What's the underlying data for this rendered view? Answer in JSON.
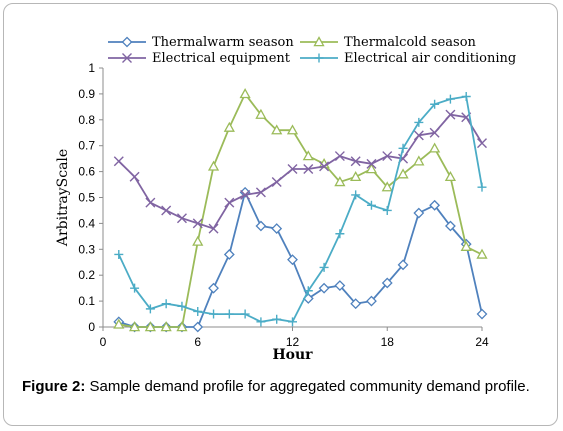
{
  "figure": {
    "caption_label": "Figure 2:",
    "caption_text": " Sample demand profile for aggregated community demand profile."
  },
  "chart_data": {
    "type": "line",
    "title": "",
    "xlabel": "Hour",
    "ylabel": "ArbitrayScale",
    "xlim": [
      0,
      24
    ],
    "ylim": [
      0,
      1
    ],
    "x_ticks": [
      0,
      6,
      12,
      18,
      24
    ],
    "y_ticks": [
      0,
      0.1,
      0.2,
      0.3,
      0.4,
      0.5,
      0.6,
      0.7,
      0.8,
      0.9,
      1
    ],
    "x": [
      1,
      2,
      3,
      4,
      5,
      6,
      7,
      8,
      9,
      10,
      11,
      12,
      13,
      14,
      15,
      16,
      17,
      18,
      19,
      20,
      21,
      22,
      23,
      24
    ],
    "series": [
      {
        "name": "Thermalwarm season",
        "color": "#4f81bd",
        "marker": "diamond",
        "values": [
          0.02,
          0.0,
          0.0,
          0.0,
          0.0,
          0.0,
          0.15,
          0.28,
          0.52,
          0.39,
          0.38,
          0.26,
          0.11,
          0.15,
          0.16,
          0.09,
          0.1,
          0.17,
          0.24,
          0.44,
          0.47,
          0.39,
          0.32,
          0.05
        ]
      },
      {
        "name": "Thermalcold season",
        "color": "#9bbb59",
        "marker": "triangle",
        "values": [
          0.01,
          0.0,
          0.0,
          0.0,
          0.0,
          0.33,
          0.62,
          0.77,
          0.9,
          0.82,
          0.76,
          0.76,
          0.66,
          0.63,
          0.56,
          0.58,
          0.61,
          0.54,
          0.59,
          0.64,
          0.69,
          0.58,
          0.31,
          0.28
        ]
      },
      {
        "name": "Electrical equipment",
        "color": "#8064a2",
        "marker": "x",
        "values": [
          0.64,
          0.58,
          0.48,
          0.45,
          0.42,
          0.4,
          0.38,
          0.48,
          0.51,
          0.52,
          0.56,
          0.61,
          0.61,
          0.62,
          0.66,
          0.64,
          0.63,
          0.66,
          0.65,
          0.74,
          0.75,
          0.82,
          0.81,
          0.71
        ]
      },
      {
        "name": "Electrical air conditioning",
        "color": "#4bacc6",
        "marker": "plus",
        "values": [
          0.28,
          0.15,
          0.07,
          0.09,
          0.08,
          0.06,
          0.05,
          0.05,
          0.05,
          0.02,
          0.03,
          0.02,
          0.14,
          0.23,
          0.36,
          0.51,
          0.47,
          0.45,
          0.69,
          0.79,
          0.86,
          0.88,
          0.89,
          0.54
        ]
      }
    ],
    "legend_position": "top"
  }
}
